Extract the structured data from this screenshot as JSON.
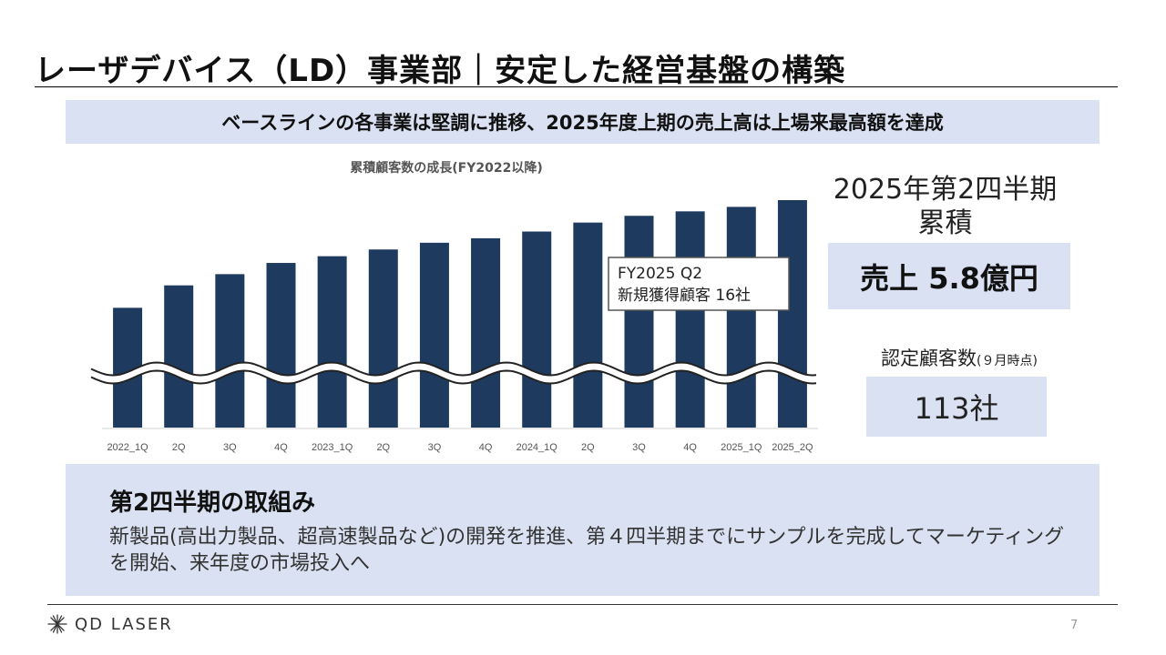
{
  "header": {
    "title": "レーザデバイス（LD）事業部｜安定した経営基盤の構築",
    "headline": "ベースラインの各事業は堅調に推移、2025年度上期の売上高は上場来最高額を達成"
  },
  "chart_data": {
    "type": "bar",
    "title": "累積顧客数の成長(FY2022以降)",
    "categories": [
      "2022_1Q",
      "2Q",
      "3Q",
      "4Q",
      "2023_1Q",
      "2Q",
      "3Q",
      "4Q",
      "2024_1Q",
      "2Q",
      "3Q",
      "4Q",
      "2025_1Q",
      "2025_2Q"
    ],
    "values": [
      65,
      75,
      80,
      85,
      88,
      91,
      94,
      96,
      99,
      103,
      106,
      108,
      110,
      113
    ],
    "ylim": [
      0,
      113
    ],
    "axis_break": true,
    "xlabel": "",
    "ylabel": "",
    "bar_color": "#1f3a5f",
    "annotation": {
      "target_category": "2025_2Q",
      "lines": [
        "FY2025 Q2",
        "新規獲得顧客 16社"
      ]
    }
  },
  "kpi": {
    "period_line1": "2025年第2四半期",
    "period_line2": "累積",
    "sales": "売上 5.8億円",
    "customers_label": "認定顧客数",
    "customers_note": "(９月時点)",
    "customers_value": "113社"
  },
  "bottom": {
    "heading": "第2四半期の取組み",
    "text": "新製品(高出力製品、超高速製品など)の開発を推進、第４四半期までにサンプルを完成してマーケティングを開始、来年度の市場投入へ"
  },
  "footer": {
    "logo_text": "QD LASER",
    "page_number": "7"
  },
  "colors": {
    "accent_box": "#d9e1f2",
    "bar": "#1f3a5f"
  }
}
